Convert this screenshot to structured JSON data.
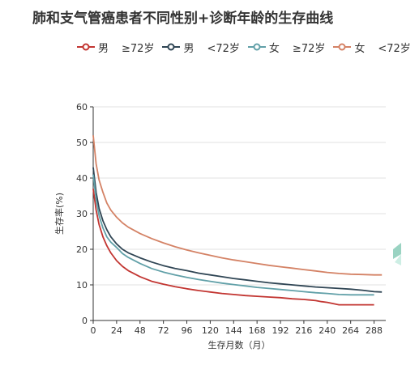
{
  "chart_data": {
    "type": "line",
    "title": "肺和支气管癌患者不同性别+诊断年龄的生存曲线",
    "xlabel": "生存月数（月）",
    "ylabel": "生存率(%)",
    "xlim": [
      0,
      300
    ],
    "ylim": [
      0,
      60
    ],
    "xticks": [
      0,
      24,
      48,
      72,
      96,
      120,
      144,
      168,
      192,
      216,
      240,
      264,
      288
    ],
    "yticks": [
      0,
      10,
      20,
      30,
      40,
      50,
      60
    ],
    "grid": "horizontal",
    "legend_position": "top",
    "series": [
      {
        "name": "男　≥72岁",
        "legend_parts": [
          "男",
          "≥72岁"
        ],
        "color": "#c23531",
        "x": [
          0,
          3,
          6,
          10,
          14,
          18,
          24,
          30,
          36,
          48,
          60,
          72,
          84,
          96,
          108,
          120,
          132,
          144,
          156,
          168,
          180,
          192,
          204,
          216,
          228,
          234,
          240,
          252,
          264,
          276,
          288
        ],
        "y": [
          37,
          31,
          27,
          23.5,
          21,
          19,
          16.8,
          15.2,
          14,
          12.3,
          11,
          10.2,
          9.5,
          8.9,
          8.4,
          8,
          7.6,
          7.3,
          7,
          6.8,
          6.6,
          6.4,
          6.1,
          5.9,
          5.6,
          5.3,
          5.1,
          4.4,
          4.4,
          4.4,
          4.4
        ]
      },
      {
        "name": "男　<72岁",
        "legend_parts": [
          "男",
          "<72岁"
        ],
        "color": "#2f4554",
        "x": [
          0,
          3,
          6,
          10,
          14,
          18,
          24,
          30,
          36,
          48,
          60,
          72,
          84,
          96,
          108,
          120,
          132,
          144,
          156,
          168,
          180,
          192,
          204,
          216,
          228,
          240,
          252,
          264,
          276,
          288,
          296
        ],
        "y": [
          43,
          36,
          31.5,
          28,
          25.5,
          23.5,
          21.5,
          20,
          19,
          17.6,
          16.4,
          15.4,
          14.6,
          14,
          13.3,
          12.8,
          12.3,
          11.8,
          11.4,
          11,
          10.6,
          10.3,
          10,
          9.7,
          9.4,
          9.2,
          9,
          8.8,
          8.5,
          8.1,
          8
        ]
      },
      {
        "name": "女　≥72岁",
        "legend_parts": [
          "女",
          "≥72岁"
        ],
        "color": "#61a0a8",
        "x": [
          0,
          3,
          6,
          10,
          14,
          18,
          24,
          30,
          36,
          48,
          60,
          72,
          84,
          96,
          108,
          120,
          132,
          144,
          156,
          168,
          180,
          192,
          204,
          216,
          228,
          240,
          252,
          264,
          276,
          288
        ],
        "y": [
          41,
          34,
          29.5,
          26,
          23.5,
          22,
          20.5,
          18.8,
          17.7,
          16,
          14.6,
          13.6,
          12.8,
          12.1,
          11.5,
          11,
          10.5,
          10.1,
          9.7,
          9.3,
          9,
          8.7,
          8.4,
          8.1,
          7.8,
          7.6,
          7.3,
          7.2,
          7.2,
          7.2
        ]
      },
      {
        "name": "女　<72岁",
        "legend_parts": [
          "女",
          "<72岁"
        ],
        "color": "#d48265",
        "x": [
          0,
          3,
          6,
          10,
          14,
          18,
          24,
          30,
          36,
          48,
          60,
          72,
          84,
          96,
          108,
          120,
          132,
          144,
          156,
          168,
          180,
          192,
          204,
          216,
          228,
          240,
          252,
          264,
          276,
          288,
          296
        ],
        "y": [
          52,
          44,
          39.5,
          36,
          33,
          31,
          29,
          27.4,
          26.2,
          24.4,
          23,
          21.8,
          20.7,
          19.8,
          19,
          18.3,
          17.6,
          17,
          16.5,
          16,
          15.5,
          15.1,
          14.7,
          14.3,
          13.9,
          13.5,
          13.2,
          13,
          12.9,
          12.8,
          12.8
        ]
      }
    ]
  }
}
